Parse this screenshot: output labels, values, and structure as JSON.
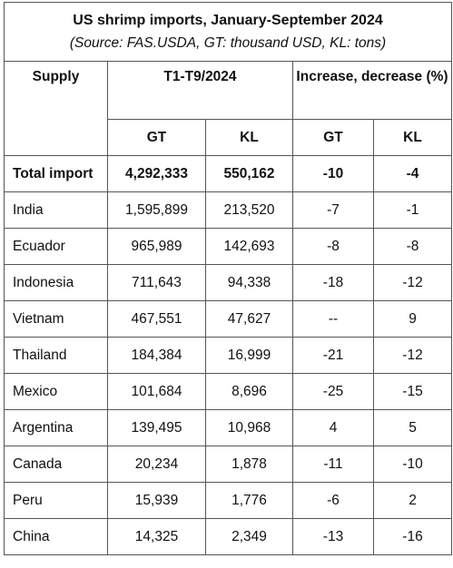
{
  "title": "US shrimp imports, January-September 2024",
  "subtitle": "(Source: FAS.USDA, GT: thousand USD, KL: tons)",
  "headers": {
    "supply": "Supply",
    "period": "T1-T9/2024",
    "change": "Increase, decrease (%)",
    "gt": "GT",
    "kl": "KL",
    "gt_change": "GT",
    "kl_change": "KL"
  },
  "rows": [
    {
      "name": "Total import",
      "gt": "4,292,333",
      "kl": "550,162",
      "gt_change": "-10",
      "kl_change": "-4"
    },
    {
      "name": "India",
      "gt": "1,595,899",
      "kl": "213,520",
      "gt_change": "-7",
      "kl_change": "-1"
    },
    {
      "name": "Ecuador",
      "gt": "965,989",
      "kl": "142,693",
      "gt_change": "-8",
      "kl_change": "-8"
    },
    {
      "name": "Indonesia",
      "gt": "711,643",
      "kl": "94,338",
      "gt_change": "-18",
      "kl_change": "-12"
    },
    {
      "name": "Vietnam",
      "gt": "467,551",
      "kl": "47,627",
      "gt_change": "--",
      "kl_change": "9"
    },
    {
      "name": "Thailand",
      "gt": "184,384",
      "kl": "16,999",
      "gt_change": "-21",
      "kl_change": "-12"
    },
    {
      "name": "Mexico",
      "gt": "101,684",
      "kl": "8,696",
      "gt_change": "-25",
      "kl_change": "-15"
    },
    {
      "name": "Argentina",
      "gt": "139,495",
      "kl": "10,968",
      "gt_change": "4",
      "kl_change": "5"
    },
    {
      "name": "Canada",
      "gt": "20,234",
      "kl": "1,878",
      "gt_change": "-11",
      "kl_change": "-10"
    },
    {
      "name": "Peru",
      "gt": "15,939",
      "kl": "1,776",
      "gt_change": "-6",
      "kl_change": "2"
    },
    {
      "name": "China",
      "gt": "14,325",
      "kl": "2,349",
      "gt_change": "-13",
      "kl_change": "-16"
    }
  ]
}
